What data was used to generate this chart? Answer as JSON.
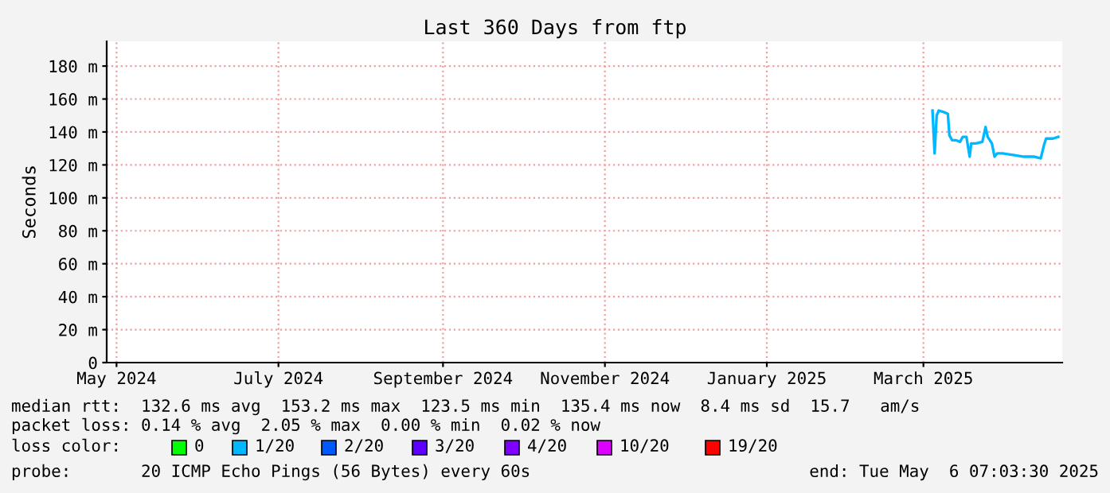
{
  "chart_data": {
    "type": "line",
    "title": "Last 360 Days from ftp",
    "ylabel": "Seconds",
    "x": [
      "2025-03-18T10:00",
      "2025-03-19T05:00",
      "2025-03-20T00:00",
      "2025-03-20T19:00",
      "2025-03-22T19:00",
      "2025-03-24T05:00",
      "2025-03-24T19:00",
      "2025-03-25T19:00",
      "2025-03-27T05:00",
      "2025-03-28T19:00",
      "2025-03-29T19:00",
      "2025-03-31T05:00",
      "2025-04-01T10:00",
      "2025-04-02T00:00",
      "2025-04-03T19:00",
      "2025-04-06T05:00",
      "2025-04-07T10:00",
      "2025-04-08T05:00",
      "2025-04-09T19:00",
      "2025-04-10T19:00",
      "2025-04-11T19:00",
      "2025-04-13T19:00",
      "2025-04-17T19:00",
      "2025-04-21T19:00",
      "2025-04-25T19:00",
      "2025-04-28T05:00",
      "2025-04-29T10:00",
      "2025-04-30T05:00",
      "2025-05-02T19:00",
      "2025-05-04T19:00"
    ],
    "series": [
      {
        "color": "#00b8ff",
        "values": [
          153,
          127,
          150,
          153,
          152,
          151,
          138,
          135,
          135,
          134,
          137,
          137,
          125,
          133,
          133,
          134,
          143,
          137,
          133,
          125,
          127,
          127,
          126,
          125,
          125,
          124,
          132,
          136,
          136,
          137
        ]
      }
    ],
    "xlim": [
      "2024-05-11T07:03",
      "2025-05-06T07:03"
    ],
    "xticks": [
      {
        "value": "2024-05-15",
        "label": "May 2024"
      },
      {
        "value": "2024-07-15",
        "label": "July 2024"
      },
      {
        "value": "2024-09-15",
        "label": "September 2024"
      },
      {
        "value": "2024-11-15",
        "label": "November 2024"
      },
      {
        "value": "2025-01-15",
        "label": "January 2025"
      },
      {
        "value": "2025-03-15",
        "label": "March 2025"
      }
    ],
    "ylim": [
      0,
      195
    ],
    "yticks": [
      0,
      {
        "value": 20,
        "label": "20 m"
      },
      {
        "value": 40,
        "label": "40 m"
      },
      {
        "value": 60,
        "label": "60 m"
      },
      {
        "value": 80,
        "label": "80 m"
      },
      {
        "value": 100,
        "label": "100 m"
      },
      {
        "value": 120,
        "label": "120 m"
      },
      {
        "value": 140,
        "label": "140 m"
      },
      {
        "value": 160,
        "label": "160 m"
      },
      {
        "value": 180,
        "label": "180 m"
      }
    ],
    "grid": true,
    "line_style": "solid",
    "annotations": [
      "median rtt:  132.6 ms avg  153.2 ms max  123.5 ms min  135.4 ms now  8.4 ms sd  15.7   am/s",
      "packet loss: 0.14 % avg  2.05 % max  0.00 % min  0.02 % now",
      "loss color:",
      "0",
      "1/20",
      "2/20",
      "3/20",
      "4/20",
      "10/20",
      "19/20",
      "probe:       20 ICMP Echo Pings (56 Bytes) every 60s",
      "end: Tue May  6 07:03:30 2025"
    ]
  }
}
